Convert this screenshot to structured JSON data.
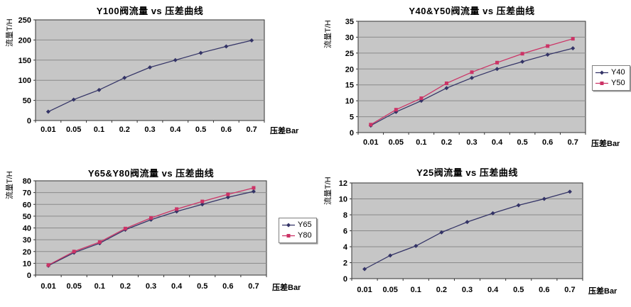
{
  "colors": {
    "plot_background": "#c6c6c6",
    "gridline": "#8a8a8a",
    "axis": "#333333",
    "series_blue": "#333366",
    "series_pink": "#cc3366"
  },
  "chart_data": [
    {
      "type": "line",
      "title": "Y100阀流量 vs 压差曲线",
      "ylabel": "流量T/H",
      "xlabel": "压差Bar",
      "categories": [
        "0.01",
        "0.05",
        "0.1",
        "0.2",
        "0.3",
        "0.4",
        "0.5",
        "0.6",
        "0.7"
      ],
      "ylim": [
        0,
        250
      ],
      "ytick": 50,
      "grid": true,
      "legend_position": "none",
      "series": [
        {
          "name": "Y100",
          "color": "#333366",
          "marker": "diamond",
          "values": [
            22,
            52,
            76,
            106,
            132,
            150,
            168,
            184,
            199
          ]
        }
      ]
    },
    {
      "type": "line",
      "title": "Y40&Y50阀流量 vs 压差曲线",
      "ylabel": "流量T/H",
      "xlabel": "压差Bar",
      "categories": [
        "0.01",
        "0.05",
        "0.1",
        "0.2",
        "0.3",
        "0.4",
        "0.5",
        "0.6",
        "0.7"
      ],
      "ylim": [
        0,
        35
      ],
      "ytick": 5,
      "grid": true,
      "legend_position": "right",
      "series": [
        {
          "name": "Y40",
          "color": "#333366",
          "marker": "diamond",
          "values": [
            2.2,
            6.5,
            10,
            14,
            17.2,
            20,
            22.3,
            24.5,
            26.5
          ]
        },
        {
          "name": "Y50",
          "color": "#cc3366",
          "marker": "square",
          "values": [
            2.5,
            7.2,
            10.8,
            15.5,
            19,
            22,
            24.8,
            27.2,
            29.5
          ]
        }
      ]
    },
    {
      "type": "line",
      "title": "Y65&Y80阀流量 vs 压差曲线",
      "ylabel": "流量T/H",
      "xlabel": "压差Bar",
      "categories": [
        "0.01",
        "0.05",
        "0.1",
        "0.2",
        "0.3",
        "0.4",
        "0.5",
        "0.6",
        "0.7"
      ],
      "ylim": [
        0,
        80
      ],
      "ytick": 10,
      "grid": true,
      "legend_position": "right",
      "series": [
        {
          "name": "Y65",
          "color": "#333366",
          "marker": "diamond",
          "values": [
            8,
            19,
            27,
            38.5,
            47,
            54,
            60,
            66,
            71
          ]
        },
        {
          "name": "Y80",
          "color": "#cc3366",
          "marker": "square",
          "values": [
            8.5,
            20,
            28,
            39.5,
            48.5,
            56,
            62.5,
            68.5,
            74
          ]
        }
      ]
    },
    {
      "type": "line",
      "title": "Y25阀流量 vs 压差曲线",
      "ylabel": "流量T/H",
      "xlabel": "压差Bar",
      "categories": [
        "0.01",
        "0.05",
        "0.1",
        "0.2",
        "0.3",
        "0.4",
        "0.5",
        "0.6",
        "0.7"
      ],
      "ylim": [
        0,
        12
      ],
      "ytick": 2,
      "grid": true,
      "legend_position": "none",
      "series": [
        {
          "name": "Y25",
          "color": "#333366",
          "marker": "diamond",
          "values": [
            1.2,
            2.9,
            4.1,
            5.8,
            7.1,
            8.2,
            9.2,
            10,
            10.9
          ]
        }
      ]
    }
  ]
}
